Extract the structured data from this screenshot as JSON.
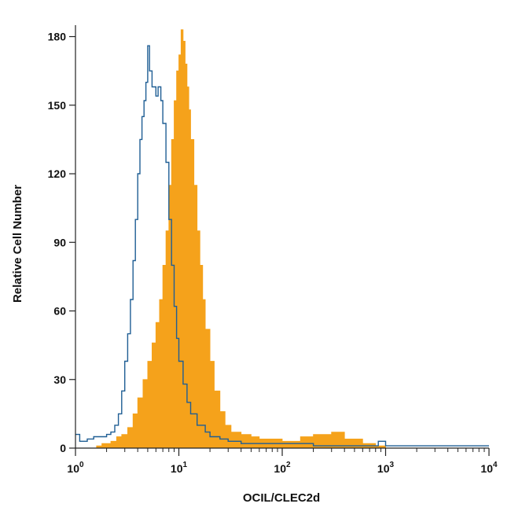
{
  "chart_data": {
    "type": "area",
    "xlabel": "OCIL/CLEC2d",
    "ylabel": "Relative Cell Number",
    "x_scale": "log10",
    "xlim": [
      1,
      10000
    ],
    "ylim": [
      0,
      185
    ],
    "x_ticks": [
      {
        "base": "10",
        "exp": "0",
        "value": 1
      },
      {
        "base": "10",
        "exp": "1",
        "value": 10
      },
      {
        "base": "10",
        "exp": "2",
        "value": 100
      },
      {
        "base": "10",
        "exp": "3",
        "value": 1000
      },
      {
        "base": "10",
        "exp": "4",
        "value": 10000
      }
    ],
    "y_ticks": [
      "0",
      "30",
      "60",
      "90",
      "120",
      "150",
      "180"
    ],
    "grid": false,
    "series": [
      {
        "style": "filled",
        "color": "#f5a21b",
        "points": [
          [
            1.4,
            0
          ],
          [
            1.6,
            1
          ],
          [
            1.8,
            2
          ],
          [
            2.0,
            2
          ],
          [
            2.2,
            3
          ],
          [
            2.5,
            5
          ],
          [
            2.8,
            6
          ],
          [
            3.2,
            9
          ],
          [
            3.6,
            15
          ],
          [
            4.0,
            22
          ],
          [
            4.5,
            30
          ],
          [
            5.0,
            38
          ],
          [
            5.5,
            46
          ],
          [
            6.0,
            55
          ],
          [
            6.5,
            65
          ],
          [
            7.0,
            80
          ],
          [
            7.5,
            95
          ],
          [
            8.0,
            115
          ],
          [
            8.5,
            135
          ],
          [
            9.0,
            152
          ],
          [
            9.5,
            165
          ],
          [
            10.0,
            172
          ],
          [
            10.5,
            183
          ],
          [
            11.0,
            178
          ],
          [
            11.5,
            168
          ],
          [
            12.0,
            158
          ],
          [
            12.5,
            148
          ],
          [
            13.0,
            135
          ],
          [
            14.0,
            115
          ],
          [
            15.0,
            95
          ],
          [
            16.0,
            80
          ],
          [
            17.0,
            65
          ],
          [
            18.0,
            52
          ],
          [
            20.0,
            38
          ],
          [
            22.0,
            25
          ],
          [
            25.0,
            16
          ],
          [
            28.0,
            10
          ],
          [
            32.0,
            7
          ],
          [
            40.0,
            6
          ],
          [
            50.0,
            5
          ],
          [
            60.0,
            4
          ],
          [
            80.0,
            4
          ],
          [
            100.0,
            3
          ],
          [
            150.0,
            5
          ],
          [
            200.0,
            6
          ],
          [
            300.0,
            7
          ],
          [
            400.0,
            4
          ],
          [
            600.0,
            2
          ],
          [
            800.0,
            1
          ],
          [
            1000.0,
            0
          ]
        ]
      },
      {
        "style": "outline",
        "color": "#1f5e94",
        "points": [
          [
            1.0,
            6
          ],
          [
            1.1,
            3
          ],
          [
            1.3,
            4
          ],
          [
            1.5,
            5
          ],
          [
            1.8,
            5
          ],
          [
            2.0,
            6
          ],
          [
            2.2,
            7
          ],
          [
            2.4,
            10
          ],
          [
            2.6,
            15
          ],
          [
            2.8,
            25
          ],
          [
            3.0,
            38
          ],
          [
            3.2,
            50
          ],
          [
            3.4,
            65
          ],
          [
            3.6,
            82
          ],
          [
            3.8,
            100
          ],
          [
            4.0,
            120
          ],
          [
            4.2,
            135
          ],
          [
            4.4,
            145
          ],
          [
            4.6,
            152
          ],
          [
            4.8,
            160
          ],
          [
            5.0,
            176
          ],
          [
            5.2,
            165
          ],
          [
            5.5,
            158
          ],
          [
            6.0,
            154
          ],
          [
            6.3,
            158
          ],
          [
            6.7,
            152
          ],
          [
            7.0,
            142
          ],
          [
            7.5,
            125
          ],
          [
            8.0,
            100
          ],
          [
            8.5,
            80
          ],
          [
            9.0,
            62
          ],
          [
            9.5,
            48
          ],
          [
            10.0,
            38
          ],
          [
            11.0,
            28
          ],
          [
            12.0,
            20
          ],
          [
            13.0,
            15
          ],
          [
            15.0,
            10
          ],
          [
            18.0,
            7
          ],
          [
            20.0,
            5
          ],
          [
            25.0,
            4
          ],
          [
            30.0,
            3
          ],
          [
            40.0,
            2
          ],
          [
            60.0,
            2
          ],
          [
            100.0,
            2
          ],
          [
            200.0,
            1
          ],
          [
            400.0,
            1
          ],
          [
            700.0,
            1
          ],
          [
            850.0,
            3
          ],
          [
            1000.0,
            1
          ],
          [
            10000.0,
            1
          ]
        ]
      }
    ]
  }
}
